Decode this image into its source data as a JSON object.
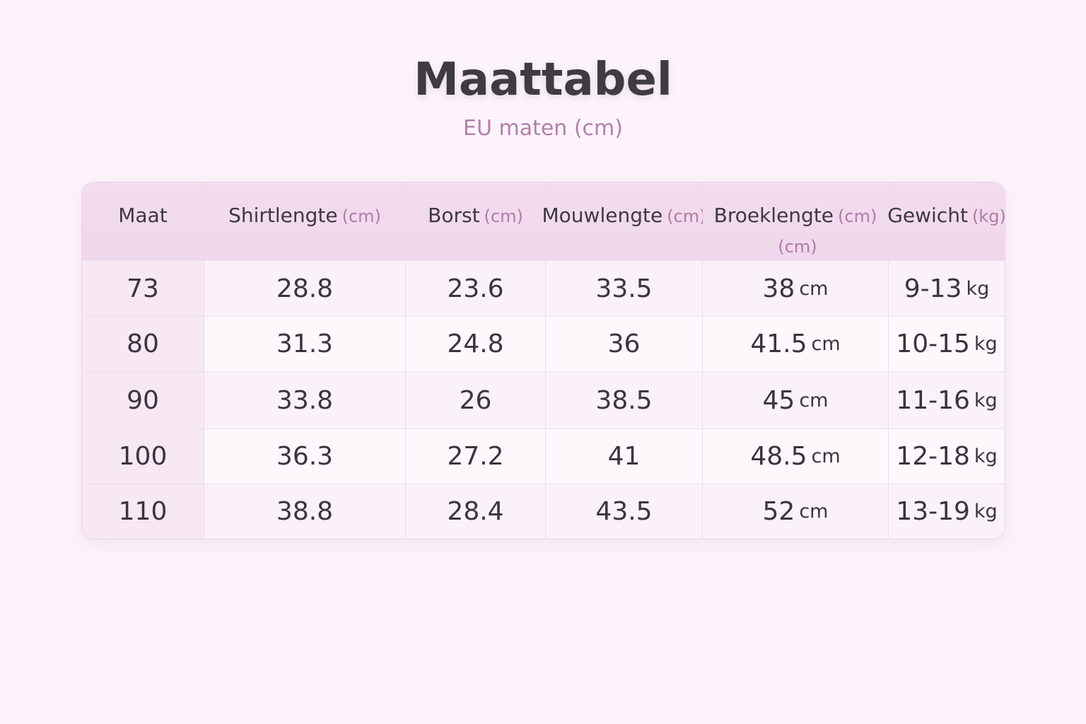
{
  "header": {
    "title": "Maattabel",
    "subtitle": "EU maten (cm)"
  },
  "table": {
    "headers": [
      {
        "name": "Maat"
      },
      {
        "name": "Shirtlengte",
        "units": [
          "(cm)"
        ]
      },
      {
        "name": "Borst",
        "units": [
          "(cm)"
        ]
      },
      {
        "name": "Mouwlengte",
        "units": [
          "(cm)"
        ]
      },
      {
        "name": "Broeklengte",
        "units": [
          "(cm)",
          "(cm)"
        ]
      },
      {
        "name": "Gewicht",
        "units": [
          "(kg)"
        ]
      }
    ],
    "rows": [
      [
        "73",
        "28.8",
        "23.6",
        "33.5",
        {
          "value": "38",
          "unit": "cm"
        },
        {
          "value": "9-13",
          "unit": "kg"
        }
      ],
      [
        "80",
        "31.3",
        "24.8",
        "36",
        {
          "value": "41.5",
          "unit": "cm"
        },
        {
          "value": "10-15",
          "unit": "kg"
        }
      ],
      [
        "90",
        "33.8",
        "26",
        "38.5",
        {
          "value": "45",
          "unit": "cm"
        },
        {
          "value": "11-16",
          "unit": "kg"
        }
      ],
      [
        "100",
        "36.3",
        "27.2",
        "41",
        {
          "value": "48.5",
          "unit": "cm"
        },
        {
          "value": "12-18",
          "unit": "kg"
        }
      ],
      [
        "110",
        "38.8",
        "28.4",
        "43.5",
        {
          "value": "52",
          "unit": "cm"
        },
        {
          "value": "13-19",
          "unit": "kg"
        }
      ]
    ]
  }
}
